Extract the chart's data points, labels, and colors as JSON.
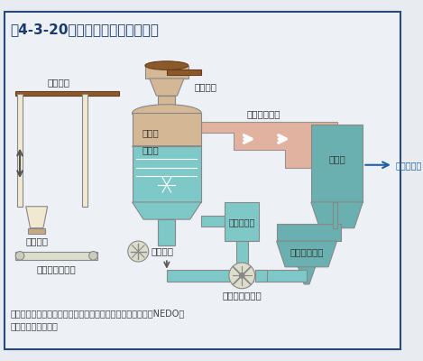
{
  "title": "図4-3-20　コークス乾式消火設備",
  "title_color": "#1a3a6b",
  "bg_color": "#e8ecf0",
  "fig_bg": "#e8ecf0",
  "source_text": "出典：独立行政法人新エネルギー・産業技術総合開発機構（NEDO）\n　　　ホームページ",
  "labels": {
    "crane": "クレーン",
    "loading": "装入装置",
    "primary_dust": "１次集塵装置",
    "holding": "保持槽",
    "cooling": "冷却槽",
    "boiler": "ボイラ",
    "steam": "工場用蒸気",
    "feedwater": "給水予熱器",
    "discharge": "排出装置",
    "secondary_dust": "２次集塵装置",
    "gas_fan": "ガス循環ファン",
    "bucket": "バケット",
    "belt": "ベルトコンベア"
  },
  "colors": {
    "tan": "#c8a882",
    "tan_light": "#d4b896",
    "tan_fill": "#d4b896",
    "teal": "#6ab0b0",
    "teal_light": "#7ec8c8",
    "teal_dark": "#5a9898",
    "salmon": "#d4907a",
    "salmon_light": "#e0a890",
    "cream": "#f0e8d0",
    "brown": "#8b5a2b",
    "brown_dark": "#6b3a1b",
    "outline": "#888888",
    "arrow_white": "#ffffff",
    "blue_arrow": "#2060a0",
    "text_dark": "#333333",
    "border": "#2a4a7a"
  }
}
